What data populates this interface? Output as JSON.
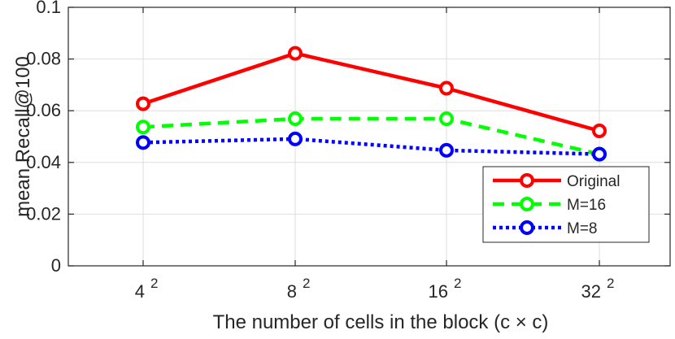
{
  "chart_data": {
    "type": "line",
    "title": "",
    "xlabel": "The number of cells in the block (c  × c)",
    "ylabel": "mean Recall@100",
    "categories": [
      {
        "base": "4",
        "exp": "2"
      },
      {
        "base": "8",
        "exp": "2"
      },
      {
        "base": "16",
        "exp": "2"
      },
      {
        "base": "32",
        "exp": "2"
      }
    ],
    "ylim": [
      0,
      0.1
    ],
    "yticks": [
      "0",
      "0.02",
      "0.04",
      "0.06",
      "0.08",
      "0.1"
    ],
    "grid": true,
    "legend_position": "bottom-right",
    "series": [
      {
        "name": "Original",
        "color": "#ff0000",
        "line_style": "solid",
        "marker": "circle",
        "values": [
          0.0627,
          0.0822,
          0.0687,
          0.0522
        ]
      },
      {
        "name": "M=16",
        "color": "#00ff00",
        "line_style": "dashed",
        "marker": "circle",
        "values": [
          0.0537,
          0.0569,
          0.0569,
          0.0432
        ]
      },
      {
        "name": "M=8",
        "color": "#0000ff",
        "line_style": "dotted",
        "marker": "circle",
        "values": [
          0.0477,
          0.0491,
          0.0447,
          0.0432
        ]
      }
    ]
  }
}
